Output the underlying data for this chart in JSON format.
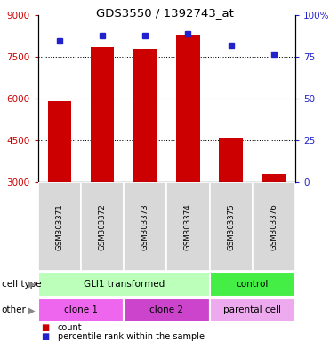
{
  "title": "GDS3550 / 1392743_at",
  "samples": [
    "GSM303371",
    "GSM303372",
    "GSM303373",
    "GSM303374",
    "GSM303375",
    "GSM303376"
  ],
  "counts": [
    5900,
    7850,
    7800,
    8300,
    4600,
    3300
  ],
  "percentile_ranks": [
    85,
    88,
    88,
    89,
    82,
    77
  ],
  "ylim_left": [
    3000,
    9000
  ],
  "ylim_right": [
    0,
    100
  ],
  "yticks_left": [
    3000,
    4500,
    6000,
    7500,
    9000
  ],
  "yticks_right": [
    0,
    25,
    50,
    75,
    100
  ],
  "ytick_labels_right": [
    "0",
    "25",
    "50",
    "75",
    "100%"
  ],
  "bar_color": "#cc0000",
  "dot_color": "#2222cc",
  "cell_type_groups": [
    {
      "label": "GLI1 transformed",
      "span": [
        0,
        4
      ],
      "color": "#bbffbb"
    },
    {
      "label": "control",
      "span": [
        4,
        6
      ],
      "color": "#44ee44"
    }
  ],
  "other_groups": [
    {
      "label": "clone 1",
      "span": [
        0,
        2
      ],
      "color": "#ee66ee"
    },
    {
      "label": "clone 2",
      "span": [
        2,
        4
      ],
      "color": "#cc44cc"
    },
    {
      "label": "parental cell",
      "span": [
        4,
        6
      ],
      "color": "#eeaaee"
    }
  ],
  "row_labels": [
    "cell type",
    "other"
  ],
  "legend_items": [
    {
      "color": "#cc0000",
      "label": "count"
    },
    {
      "color": "#2222cc",
      "label": "percentile rank within the sample"
    }
  ],
  "tick_color_left": "#cc0000",
  "tick_color_right": "#2222cc",
  "bar_width": 0.55,
  "bg_gray": "#d8d8d8"
}
